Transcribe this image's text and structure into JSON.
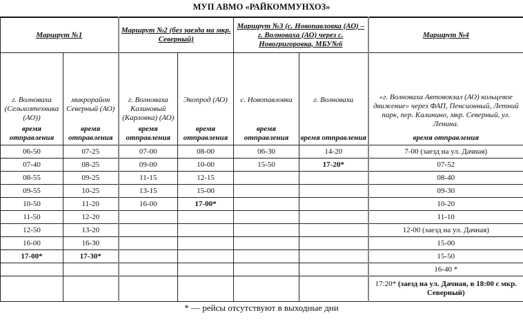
{
  "title": "МУП АВМО «РАЙКОММУНХОЗ»",
  "routes": [
    {
      "name": "Маршрут №1"
    },
    {
      "name": "Маршрут №2 (без заезда на мкр. Северный)"
    },
    {
      "name": "Маршрут №3 (с. Новопавловка (АО) – г. Волноваха (АО) через с. Новогригоровка, МБУ№6"
    },
    {
      "name": "Маршрут №4"
    }
  ],
  "stops": [
    "г. Волноваха (Сельхозтехника (АО))",
    "микрорайон Северный (АО)",
    "г. Волноваха Казиновый (Карловка) (АО)",
    "Экопрод (АО)",
    "с. Новопавловка",
    "г. Волноваха",
    "«г. Волноваха Автовокзал (АО) кольцевое движение» через ФАП, Пенсионный, Летний парк, пер. Калинино, мкр. Северный, ул. Ленина."
  ],
  "time_label": "время отправления",
  "rows": [
    [
      [
        "06-50",
        0
      ],
      [
        "07-25",
        0
      ],
      [
        "07-00",
        0
      ],
      [
        "08-00",
        0
      ],
      [
        "06-30",
        0
      ],
      [
        "14-20",
        0
      ],
      [
        "7-00 (заезд на ул. Дачная)",
        0
      ]
    ],
    [
      [
        "07-40",
        0
      ],
      [
        "08-25",
        0
      ],
      [
        "09-00",
        0
      ],
      [
        "10-00",
        0
      ],
      [
        "15-50",
        0
      ],
      [
        "17-20*",
        1
      ],
      [
        "07-52",
        0
      ]
    ],
    [
      [
        "08-55",
        0
      ],
      [
        "09-25",
        0
      ],
      [
        "11-15",
        0
      ],
      [
        "12-15",
        0
      ],
      [
        "",
        0
      ],
      [
        "",
        0
      ],
      [
        "08-40",
        0
      ]
    ],
    [
      [
        "09-55",
        0
      ],
      [
        "10-25",
        0
      ],
      [
        "13-15",
        0
      ],
      [
        "15-00",
        0
      ],
      [
        "",
        0
      ],
      [
        "",
        0
      ],
      [
        "09-30",
        0
      ]
    ],
    [
      [
        "10-50",
        0
      ],
      [
        "11-20",
        0
      ],
      [
        "16-00",
        0
      ],
      [
        "17-00*",
        1
      ],
      [
        "",
        0
      ],
      [
        "",
        0
      ],
      [
        "10-20",
        0
      ]
    ],
    [
      [
        "11-50",
        0
      ],
      [
        "12-20",
        0
      ],
      [
        "",
        0
      ],
      [
        "",
        0
      ],
      [
        "",
        0
      ],
      [
        "",
        0
      ],
      [
        "11-10",
        0
      ]
    ],
    [
      [
        "12-50",
        0
      ],
      [
        "13-20",
        0
      ],
      [
        "",
        0
      ],
      [
        "",
        0
      ],
      [
        "",
        0
      ],
      [
        "",
        0
      ],
      [
        "12-00 (заезд на ул. Дачная)",
        0
      ]
    ],
    [
      [
        "16-00",
        0
      ],
      [
        "16-30",
        0
      ],
      [
        "",
        0
      ],
      [
        "",
        0
      ],
      [
        "",
        0
      ],
      [
        "",
        0
      ],
      [
        "15-00",
        0
      ]
    ],
    [
      [
        "17-00*",
        1
      ],
      [
        "17-30*",
        1
      ],
      [
        "",
        0
      ],
      [
        "",
        0
      ],
      [
        "",
        0
      ],
      [
        "",
        0
      ],
      [
        "15-50",
        0
      ]
    ],
    [
      [
        "",
        0
      ],
      [
        "",
        0
      ],
      [
        "",
        0
      ],
      [
        "",
        0
      ],
      [
        "",
        0
      ],
      [
        "",
        0
      ],
      [
        "16-40 *",
        0
      ]
    ]
  ],
  "last_row": {
    "prefix": "17:20*",
    "bold": " (заезд на ул. Дачная, в 18:00 с мкр. Северный)"
  },
  "footnote": "* — рейсы отсутствуют в выходные дни"
}
